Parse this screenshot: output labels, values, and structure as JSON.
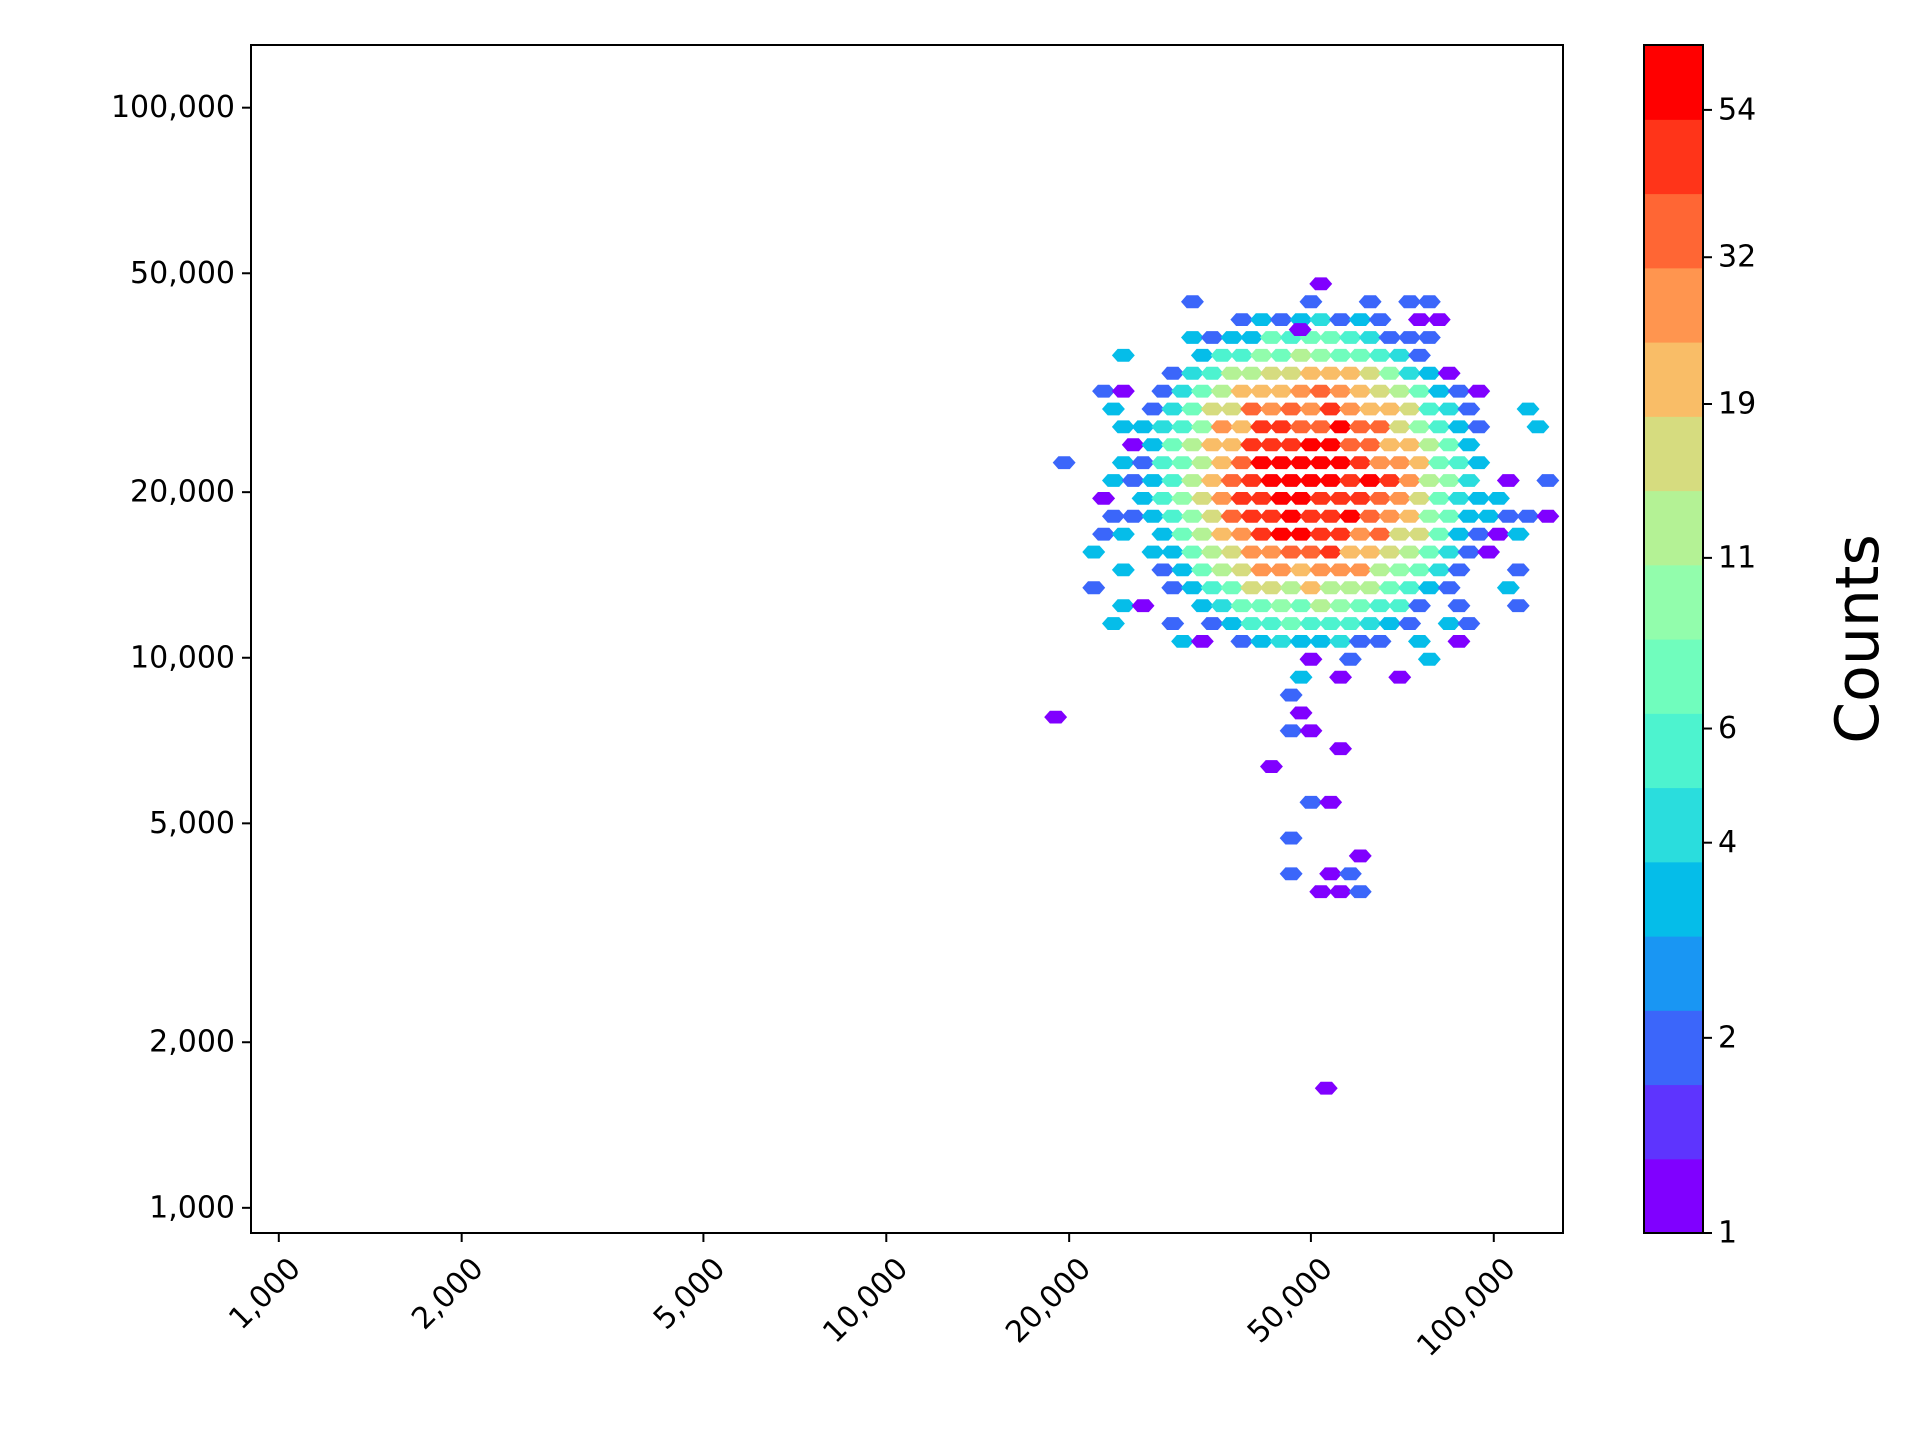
{
  "chart_data": {
    "type": "heatmap",
    "subtype": "hexbin",
    "title": "",
    "xlabel": "",
    "ylabel": "",
    "xscale": "log",
    "yscale": "log",
    "xlim": [
      900,
      130000
    ],
    "ylim": [
      900,
      130000
    ],
    "x_ticks": [
      1000,
      2000,
      5000,
      10000,
      20000,
      50000,
      100000
    ],
    "x_tick_labels": [
      "1,000",
      "2,000",
      "5,000",
      "10,000",
      "20,000",
      "50,000",
      "100,000"
    ],
    "y_ticks": [
      1000,
      2000,
      5000,
      10000,
      20000,
      50000,
      100000
    ],
    "y_tick_labels": [
      "1,000",
      "2,000",
      "5,000",
      "10,000",
      "20,000",
      "50,000",
      "100,000"
    ],
    "grid": false,
    "colormap": "rainbow",
    "colorbar": {
      "label": "Counts",
      "scale": "log",
      "range": [
        1,
        68
      ],
      "ticks": [
        1,
        2,
        4,
        6,
        11,
        19,
        32,
        54
      ],
      "tick_labels": [
        "1",
        "2",
        "4",
        "6",
        "11",
        "19",
        "32",
        "54"
      ],
      "colors": [
        "#8000ff",
        "#5e34fe",
        "#3b66fa",
        "#1996f3",
        "#05bde9",
        "#2adddd",
        "#4df3cf",
        "#70fdbd",
        "#92fdac",
        "#b4f295",
        "#d6dc7f",
        "#f9bd67",
        "#ff954f",
        "#ff6634",
        "#ff3419",
        "#ff0000"
      ]
    },
    "density": {
      "peak": {
        "x": 50000,
        "y": 21000,
        "count": 68
      },
      "core_spread_decades": {
        "x": 0.19,
        "y": 0.21
      },
      "halo_spread_decades": {
        "x": 0.3,
        "y": 0.28
      },
      "lower_tail_min_y": 3000
    },
    "outliers": [
      {
        "x": 53000,
        "y": 1650,
        "count": 1
      },
      {
        "x": 19000,
        "y": 7800,
        "count": 1
      },
      {
        "x": 48000,
        "y": 39500,
        "count": 1
      }
    ]
  }
}
